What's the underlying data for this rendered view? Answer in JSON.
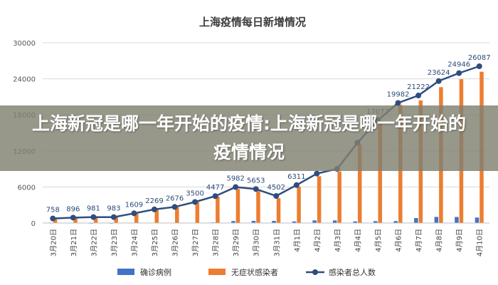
{
  "overlay": {
    "text": "上海新冠是哪一年开始的疫情:上海新冠是哪一年开始的疫情情况"
  },
  "colors": {
    "confirmed": "#4472c4",
    "asymptomatic": "#ed7d31",
    "total": "#2f4d7e",
    "grid": "#d9d9d9",
    "axis": "#bfbfbf"
  },
  "chart_data": {
    "type": "bar",
    "title": "上海疫情每日新增情况",
    "categories": [
      "3月20日",
      "3月21日",
      "3月22日",
      "3月23日",
      "3月24日",
      "3月25日",
      "3月26日",
      "3月27日",
      "3月28日",
      "3月29日",
      "3月30日",
      "3月31日",
      "4月1日",
      "4月2日",
      "4月3日",
      "4月4日",
      "4月5日",
      "4月6日",
      "4月7日",
      "4月8日",
      "4月9日",
      "4月10日"
    ],
    "ylim": [
      0,
      30000
    ],
    "yticks": [
      0,
      6000,
      12000,
      18000,
      24000,
      30000
    ],
    "grid": true,
    "legend_position": "bottom",
    "series": [
      {
        "name": "确诊病例",
        "kind": "bar",
        "values": [
          24,
          31,
          4,
          4,
          29,
          38,
          45,
          50,
          96,
          326,
          355,
          358,
          260,
          438,
          425,
          268,
          311,
          322,
          824,
          1015,
          1006,
          914
        ]
      },
      {
        "name": "无症状感染者",
        "kind": "bar",
        "values": [
          734,
          865,
          977,
          979,
          1580,
          2231,
          2631,
          3450,
          4381,
          5656,
          5298,
          4144,
          6051,
          7788,
          8581,
          13086,
          16766,
          19660,
          20398,
          22609,
          23937,
          25173
        ]
      },
      {
        "name": "感染者总人数",
        "kind": "line",
        "values": [
          758,
          896,
          981,
          983,
          1609,
          2269,
          2676,
          3500,
          4477,
          5982,
          5653,
          4502,
          6311,
          8226,
          9006,
          13354,
          17077,
          19982,
          21222,
          23624,
          24946,
          26087
        ],
        "labels": [
          "758",
          "896",
          "981",
          "983",
          "1609",
          "2269",
          "2676",
          "3500",
          "4477",
          "5982",
          "5653",
          "4502",
          "6311",
          "",
          "",
          "",
          "17077",
          "19982",
          "21222",
          "23624",
          "24946",
          "26087"
        ]
      }
    ]
  }
}
